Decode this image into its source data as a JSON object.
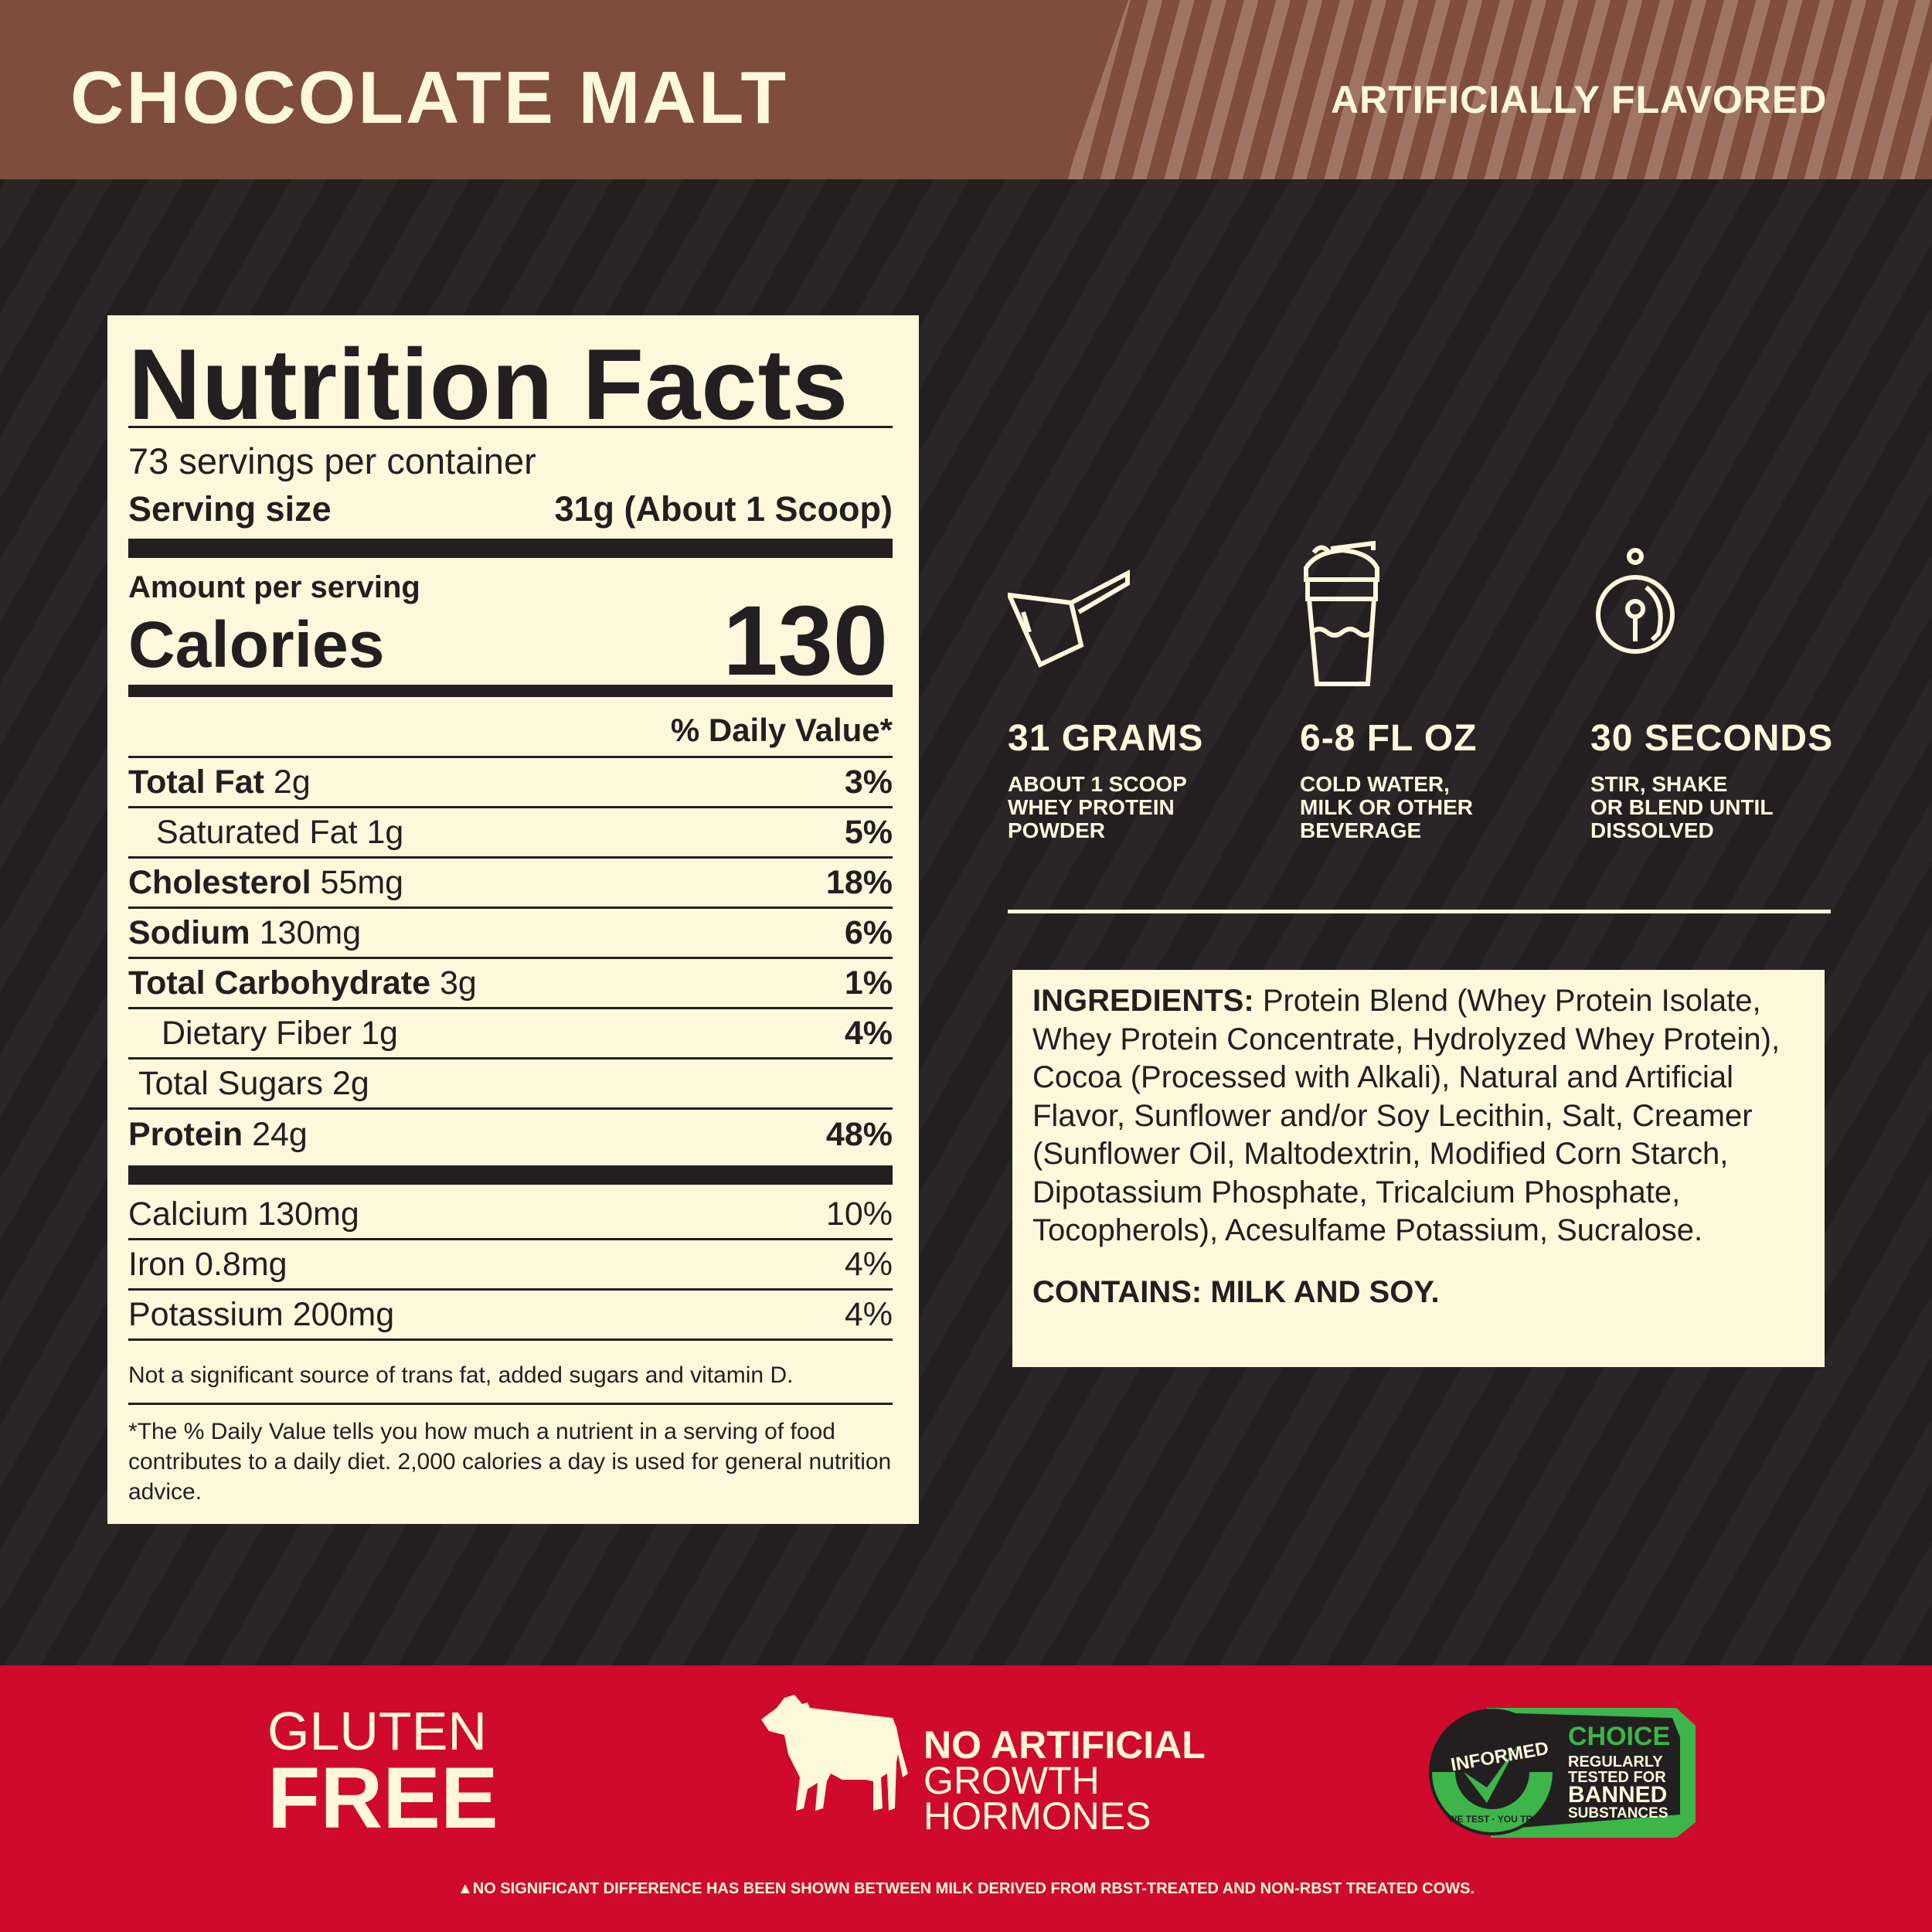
{
  "header": {
    "flavor_name": "CHOCOLATE MALT",
    "flavor_type": "ARTIFICIALLY FLAVORED"
  },
  "colors": {
    "brown": "#7f4d3c",
    "dark": "#231f20",
    "cream": "#fdf7dc",
    "red": "#cf0a2c",
    "green": "#3db54a"
  },
  "nutrition": {
    "title": "Nutrition Facts",
    "servings": "73 servings per container",
    "serving_size_label": "Serving size",
    "serving_size_value": "31g (About 1 Scoop)",
    "amount_per_serving": "Amount per serving",
    "calories_label": "Calories",
    "calories_value": "130",
    "dv_header": "% Daily Value*",
    "rows": [
      {
        "name": "Total Fat",
        "amount": "2g",
        "dv": "3%"
      },
      {
        "name": "Saturated Fat",
        "amount": "1g",
        "dv": "5%"
      },
      {
        "name": "Cholesterol",
        "amount": "55mg",
        "dv": "18%"
      },
      {
        "name": "Sodium",
        "amount": "130mg",
        "dv": "6%"
      },
      {
        "name": "Total Carbohydrate",
        "amount": "3g",
        "dv": "1%"
      },
      {
        "name": "Dietary Fiber",
        "amount": "1g",
        "dv": "4%"
      },
      {
        "name": "Total Sugars",
        "amount": "2g",
        "dv": ""
      },
      {
        "name": "Protein",
        "amount": "24g",
        "dv": "48%"
      }
    ],
    "minerals": [
      {
        "label": "Calcium 130mg",
        "dv": "10%"
      },
      {
        "label": "Iron 0.8mg",
        "dv": "4%"
      },
      {
        "label": "Potassium 200mg",
        "dv": "4%"
      }
    ],
    "note": "Not a significant source of trans fat, added sugars and vitamin D.",
    "footnote": "*The % Daily Value tells you how much a nutrient in a serving of food contributes to a daily diet. 2,000 calories a day is used for general nutrition advice."
  },
  "steps": [
    {
      "icon": "scoop-icon",
      "title": "31 GRAMS",
      "lines": [
        "ABOUT 1 SCOOP",
        "WHEY PROTEIN",
        "POWDER"
      ]
    },
    {
      "icon": "shaker-icon",
      "title": "6-8 FL OZ",
      "lines": [
        "COLD WATER,",
        "MILK OR OTHER",
        "BEVERAGE"
      ]
    },
    {
      "icon": "stopwatch-icon",
      "title": "30 SECONDS",
      "lines": [
        "STIR, SHAKE",
        "OR BLEND UNTIL",
        "DISSOLVED"
      ]
    }
  ],
  "ingredients": {
    "label": "INGREDIENTS:",
    "text": "Protein Blend (Whey Protein Isolate, Whey Protein Concentrate, Hydrolyzed Whey Protein), Cocoa (Processed with Alkali), Natural and Artificial Flavor, Sunflower and/or Soy Lecithin, Salt, Creamer (Sunflower Oil, Maltodextrin, Modified Corn Starch, Dipotassium Phosphate, Tricalcium Phosphate, Tocopherols), Acesulfame Potassium, Sucralose.",
    "contains": "CONTAINS: MILK AND SOY."
  },
  "badges": {
    "gluten_line1": "GLUTEN",
    "gluten_line2": "FREE",
    "hormones_line1": "NO ARTIFICIAL",
    "hormones_line2": "GROWTH",
    "hormones_line3": "HORMONES",
    "informed": "INFORMED",
    "informed_tagline": "WE TEST · YOU TRUST",
    "choice": "CHOICE",
    "choice_lines": [
      "REGULARLY",
      "TESTED FOR",
      "BANNED",
      "SUBSTANCES"
    ]
  },
  "footer_note": "▲NO SIGNIFICANT DIFFERENCE HAS BEEN SHOWN BETWEEN MILK DERIVED FROM RBST-TREATED AND NON-RBST TREATED COWS."
}
